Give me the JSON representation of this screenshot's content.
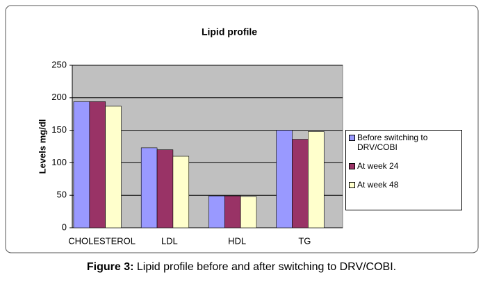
{
  "chart_data": {
    "type": "bar",
    "title": "Lipid profile",
    "y_label": "Levels mg/dl",
    "categories": [
      "CHOLESTEROL",
      "LDL",
      "HDL",
      "TG"
    ],
    "series": [
      {
        "name": "Before switching to DRV/COBI",
        "color": "#9999ff",
        "values": [
          194,
          123,
          49,
          150
        ]
      },
      {
        "name": "At week 24",
        "color": "#993366",
        "values": [
          194,
          120,
          49,
          136
        ]
      },
      {
        "name": "At week 48",
        "color": "#ffffcc",
        "values": [
          187,
          110,
          48,
          148
        ]
      }
    ],
    "ylim": [
      0,
      250
    ],
    "yticks": [
      0,
      50,
      100,
      150,
      200,
      250
    ],
    "grid": true,
    "legend": "right"
  },
  "figure_caption": {
    "label": "Figure 3:",
    "text": "Lipid profile before and after switching to DRV/COBI."
  }
}
